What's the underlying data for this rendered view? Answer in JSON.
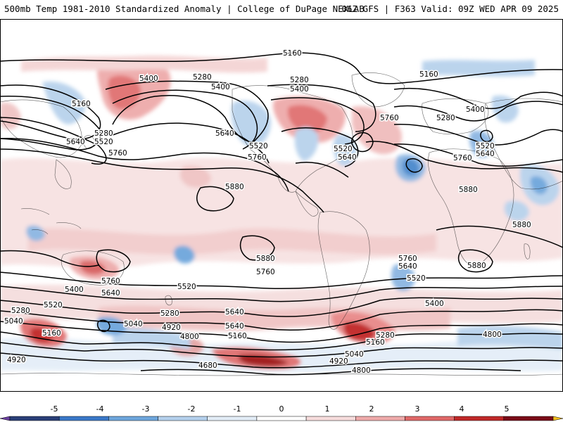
{
  "header": {
    "left": "500mb Temp 1981-2010 Standardized Anomaly | College of DuPage NEXLAB",
    "right": "06Z GFS | F363 Valid: 09Z WED APR 09 2025"
  },
  "colorbar": {
    "ticks": [
      "-5",
      "-4",
      "-3",
      "-2",
      "-1",
      "0",
      "1",
      "2",
      "3",
      "4",
      "5"
    ],
    "colors": [
      "#6a3fa0",
      "#2a3f78",
      "#3a78c8",
      "#6ea6dc",
      "#b4d0ec",
      "#e2ecf6",
      "#ffffff",
      "#f6dcdc",
      "#eeaaaa",
      "#e06868",
      "#c02828",
      "#7a0a18",
      "#f4c020"
    ]
  },
  "contour_labels": [
    "5160",
    "5280",
    "5400",
    "5520",
    "5640",
    "5760",
    "5880",
    "4920",
    "5040",
    "4800"
  ],
  "map": {
    "label_texts": {
      "l5160a": "5160",
      "l5400a": "5400",
      "l5280a": "5280",
      "l5400b": "5400",
      "l5280b": "5280",
      "l5400c": "5400",
      "l5160b": "5160",
      "l5160c": "5160",
      "l5280c": "5280",
      "l5520a": "5520",
      "l5640a": "5640",
      "l5760a": "5760",
      "l5640b": "5640",
      "l5520b": "5520",
      "l5760b": "5760",
      "l5520c": "5520",
      "l5640c": "5640",
      "l5760c": "5760",
      "l5280d": "5280",
      "l5400d": "5400",
      "l5520d": "5520",
      "l5640d": "5640",
      "l5760d": "5760",
      "l5880a": "5880",
      "l5880b": "5880",
      "l5880c": "5880",
      "l5880d": "5880",
      "l5760e": "5760",
      "l5760f": "5760",
      "l5640e": "5640",
      "l5520e": "5520",
      "l5400e": "5400",
      "l5280e": "5280",
      "l5040a": "5040",
      "l4920a": "4920",
      "l5400f": "5400",
      "l5640f": "5640",
      "l5520f": "5520",
      "l5760g": "5760",
      "l5640g": "5640",
      "l5280f": "5280",
      "l5040b": "5040",
      "l4920b": "4920",
      "l4800a": "4800",
      "l5640h": "5640",
      "l5400g": "5400",
      "l5280g": "5280",
      "l5160d": "5160",
      "l5040c": "5040",
      "l4920c": "4920",
      "l4800b": "4800",
      "l4800c": "4800",
      "l5160e": "5160",
      "l5160f": "5160",
      "l5280h": "5280",
      "l5040d": "5040",
      "l5520g": "5520",
      "l5760h": "5760",
      "l5640i": "5640",
      "l5520h": "5520",
      "l5880e": "5880",
      "l5400h": "5400",
      "l5280i": "5280",
      "l4920d": "4920",
      "l4800d": "4800",
      "l4680a": "4680",
      "l5880f": "5880"
    }
  }
}
